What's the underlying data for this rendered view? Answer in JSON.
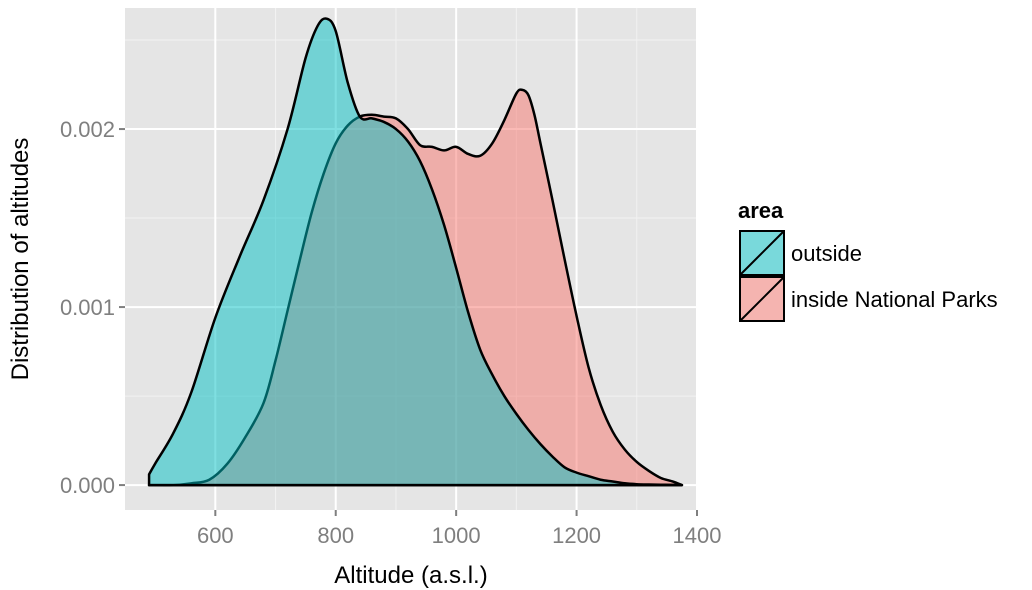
{
  "chart_data": {
    "type": "area",
    "title": "",
    "xlabel": "Altitude (a.s.l.)",
    "ylabel": "Distribution of altitudes",
    "xlim": [
      450,
      1400
    ],
    "ylim": [
      -0.00014,
      0.00268
    ],
    "x_ticks": [
      600,
      800,
      1000,
      1200,
      1400
    ],
    "x_tick_labels": [
      "600",
      "800",
      "1000",
      "1200",
      "1400"
    ],
    "y_ticks": [
      0,
      0.001,
      0.002
    ],
    "y_tick_labels": [
      "0.000",
      "0.001",
      "0.002"
    ],
    "grid": true,
    "legend": {
      "title": "area",
      "position": "right"
    },
    "series": [
      {
        "name": "outside",
        "color": "#00BFC4",
        "x": [
          490,
          500,
          530,
          560,
          600,
          640,
          680,
          720,
          750,
          770,
          785,
          800,
          820,
          840,
          860,
          880,
          900,
          920,
          940,
          960,
          980,
          1000,
          1020,
          1040,
          1060,
          1080,
          1100,
          1120,
          1140,
          1160,
          1180,
          1200,
          1220,
          1240,
          1260,
          1280,
          1300,
          1320,
          1340,
          1360,
          1375
        ],
        "y": [
          6e-05,
          0.00012,
          0.00029,
          0.00052,
          0.00094,
          0.00128,
          0.0016,
          0.002,
          0.0024,
          0.00258,
          0.00262,
          0.00255,
          0.00226,
          0.00207,
          0.00206,
          0.00204,
          0.002,
          0.00193,
          0.00182,
          0.00166,
          0.00146,
          0.00122,
          0.00097,
          0.00076,
          0.00062,
          0.0005,
          0.0004,
          0.00031,
          0.00023,
          0.00016,
          0.0001,
          7e-05,
          5e-05,
          3e-05,
          2e-05,
          1e-05,
          5e-06,
          3e-06,
          2e-06,
          1e-06,
          0.0
        ]
      },
      {
        "name": "inside National Parks",
        "color": "#F8766D",
        "x": [
          490,
          530,
          560,
          590,
          620,
          650,
          680,
          700,
          720,
          740,
          760,
          780,
          800,
          820,
          840,
          860,
          880,
          900,
          920,
          940,
          960,
          980,
          1000,
          1020,
          1040,
          1060,
          1080,
          1100,
          1110,
          1120,
          1130,
          1140,
          1160,
          1180,
          1200,
          1220,
          1240,
          1260,
          1280,
          1300,
          1320,
          1340,
          1360,
          1375
        ],
        "y": [
          0.0,
          0.0,
          1e-05,
          3e-05,
          0.00012,
          0.00027,
          0.00046,
          0.0007,
          0.00098,
          0.00126,
          0.00153,
          0.00175,
          0.00192,
          0.00202,
          0.00207,
          0.00208,
          0.00207,
          0.00206,
          0.002,
          0.00191,
          0.0019,
          0.00188,
          0.0019,
          0.00186,
          0.00185,
          0.00192,
          0.00205,
          0.0022,
          0.00222,
          0.00219,
          0.00208,
          0.00192,
          0.0016,
          0.00127,
          0.00095,
          0.00066,
          0.00045,
          0.0003,
          0.0002,
          0.00013,
          8e-05,
          4e-05,
          2e-05,
          0.0
        ]
      }
    ]
  }
}
